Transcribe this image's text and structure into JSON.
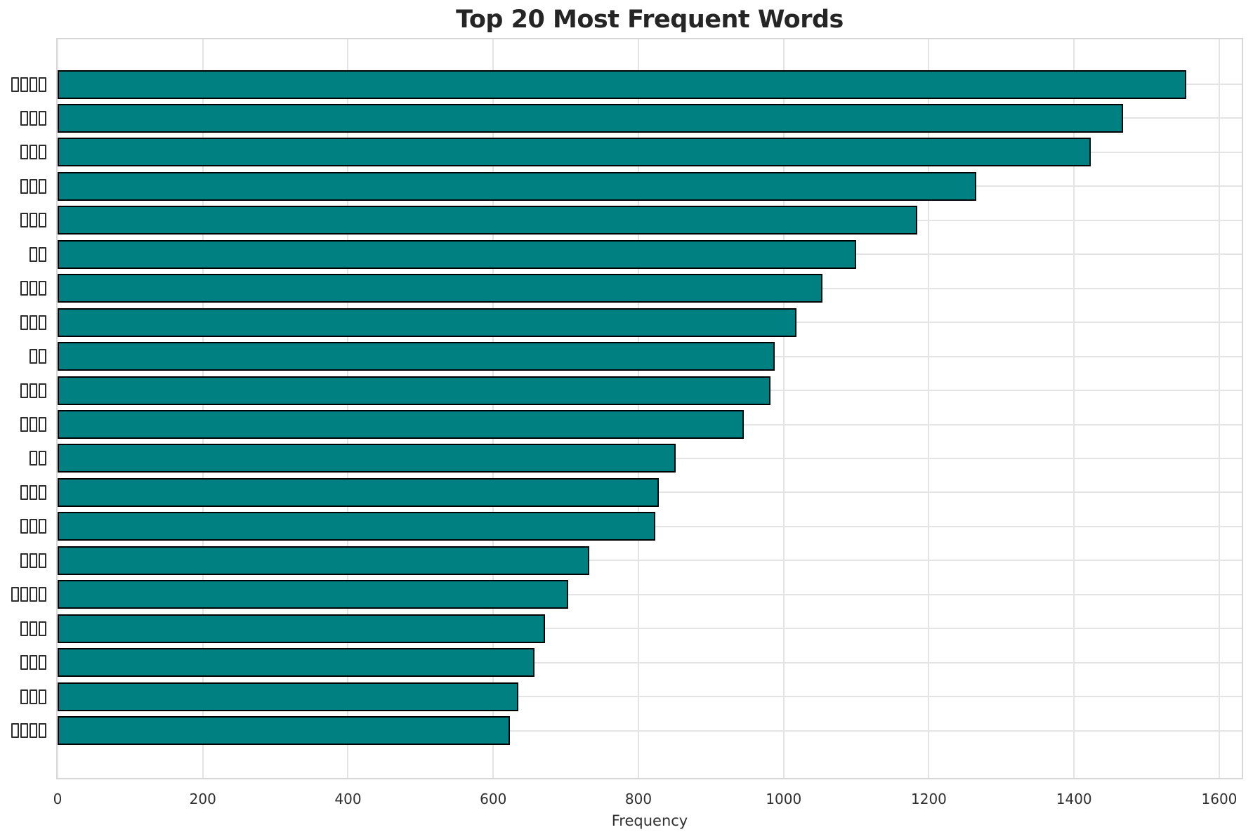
{
  "title": "Top 20 Most Frequent Words",
  "chart_data": {
    "type": "bar",
    "orientation": "horizontal",
    "title": "Top 20 Most Frequent Words",
    "xlabel": "Frequency",
    "ylabel": "",
    "xlim": [
      0,
      1631
    ],
    "x_ticks": [
      0,
      200,
      400,
      600,
      800,
      1000,
      1200,
      1400,
      1600
    ],
    "grid": true,
    "legend": false,
    "bar_color": "#008080",
    "bar_edge_color": "#000000",
    "categories": [
      "□□□□",
      "□□□",
      "□□□",
      "□□□",
      "□□□",
      "□□",
      "□□□",
      "□□□",
      "□□",
      "□□□",
      "□□□",
      "□□",
      "□□□",
      "□□□",
      "□□□",
      "□□□□",
      "□□□",
      "□□□",
      "□□□",
      "□□□□"
    ],
    "category_glyph_boxes": [
      4,
      3,
      3,
      3,
      3,
      2,
      3,
      3,
      2,
      3,
      3,
      2,
      3,
      3,
      3,
      4,
      3,
      3,
      3,
      4
    ],
    "category_note": "y-axis word labels are rendered as missing-glyph (tofu) boxes in the source image",
    "values": [
      1553,
      1466,
      1421,
      1263,
      1182,
      1098,
      1052,
      1016,
      986,
      980,
      943,
      849,
      826,
      821,
      730,
      701,
      669,
      655,
      633,
      621
    ]
  }
}
